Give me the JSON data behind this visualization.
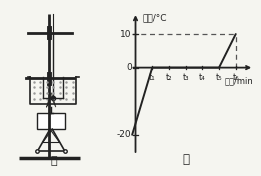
{
  "title_y": "温度/°C",
  "title_x": "时间/min",
  "label_jia": "甲",
  "label_yi": "乙",
  "y_ticks_vals": [
    10,
    0,
    -20
  ],
  "y_ticks_labels": [
    "10",
    "0",
    "-20"
  ],
  "x_tick_labels": [
    "t₁",
    "t₂",
    "t₃",
    "t₄",
    "t₅",
    "t₆"
  ],
  "x_ticks_pos": [
    1,
    2,
    3,
    4,
    5,
    6
  ],
  "line_color": "#222222",
  "dashed_color": "#555555",
  "font_color": "#222222",
  "bg_color": "#f5f5f0",
  "font_size": 6.5,
  "xlim": [
    -0.3,
    7.2
  ],
  "ylim": [
    -26,
    17
  ]
}
